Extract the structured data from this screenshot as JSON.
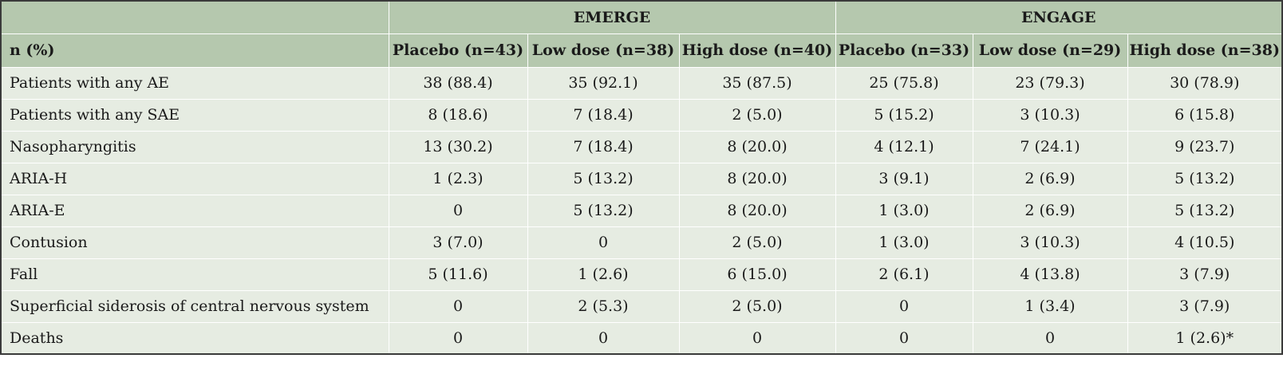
{
  "table": {
    "groups": [
      "",
      "EMERGE",
      "ENGAGE"
    ],
    "columns": [
      "n (%)",
      "Placebo (n=43)",
      "Low dose (n=38)",
      "High dose (n=40)",
      "Placebo (n=33)",
      "Low dose (n=29)",
      "High dose (n=38)"
    ],
    "rows": [
      [
        "Patients with any AE",
        "38 (88.4)",
        "35 (92.1)",
        "35 (87.5)",
        "25 (75.8)",
        "23 (79.3)",
        "30 (78.9)"
      ],
      [
        "Patients with any SAE",
        "8 (18.6)",
        "7 (18.4)",
        "2 (5.0)",
        "5 (15.2)",
        "3 (10.3)",
        "6 (15.8)"
      ],
      [
        "Nasopharyngitis",
        "13 (30.2)",
        "7 (18.4)",
        "8 (20.0)",
        "4 (12.1)",
        "7 (24.1)",
        "9 (23.7)"
      ],
      [
        "ARIA-H",
        "1 (2.3)",
        "5 (13.2)",
        "8 (20.0)",
        "3 (9.1)",
        "2 (6.9)",
        "5 (13.2)"
      ],
      [
        "ARIA-E",
        "0",
        "5 (13.2)",
        "8 (20.0)",
        "1 (3.0)",
        "2 (6.9)",
        "5 (13.2)"
      ],
      [
        "Contusion",
        "3 (7.0)",
        "0",
        "2 (5.0)",
        "1 (3.0)",
        "3 (10.3)",
        "4 (10.5)"
      ],
      [
        "Fall",
        "5 (11.6)",
        "1 (2.6)",
        "6 (15.0)",
        "2 (6.1)",
        "4 (13.8)",
        "3 (7.9)"
      ],
      [
        "Superficial siderosis of central nervous system",
        "0",
        "2 (5.3)",
        "2 (5.0)",
        "0",
        "1 (3.4)",
        "3 (7.9)"
      ],
      [
        "Deaths",
        "0",
        "0",
        "0",
        "0",
        "0",
        "1 (2.6)*"
      ]
    ]
  },
  "colors": {
    "header_bg": "#b5c8ae",
    "body_bg": "#e6ece2",
    "border": "#ffffff"
  }
}
